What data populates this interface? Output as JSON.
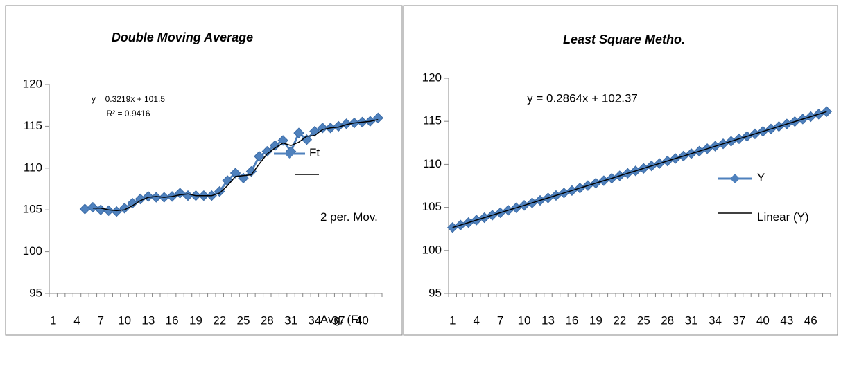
{
  "chart_data": [
    {
      "type": "line",
      "title": "Double Moving Average",
      "annotations": [
        "y = 0.3219x + 101.5",
        "R² = 0.9416"
      ],
      "categories": [
        1,
        null,
        null,
        4,
        null,
        null,
        7,
        null,
        null,
        10,
        null,
        null,
        13,
        null,
        null,
        16,
        null,
        null,
        19,
        null,
        null,
        22,
        null,
        null,
        25,
        null,
        null,
        28,
        null,
        null,
        31,
        null,
        null,
        34,
        null,
        null,
        37,
        null,
        null,
        40,
        null,
        null
      ],
      "ylim": [
        95,
        120
      ],
      "yticks": [
        95,
        100,
        105,
        110,
        115,
        120
      ],
      "series": [
        {
          "name": "Ft",
          "color": "#4f81bd",
          "marker": "diamond",
          "values": [
            null,
            null,
            null,
            null,
            105.1,
            105.3,
            105.0,
            104.9,
            104.8,
            105.2,
            105.8,
            106.3,
            106.6,
            106.5,
            106.5,
            106.6,
            107.0,
            106.7,
            106.7,
            106.7,
            106.7,
            107.2,
            108.5,
            109.4,
            108.8,
            109.6,
            111.4,
            112.0,
            112.7,
            113.3,
            112.0,
            114.2,
            113.4,
            114.4,
            114.8,
            114.8,
            115.0,
            115.3,
            115.4,
            115.5,
            115.6,
            116.0
          ]
        },
        {
          "name": "2 per. Mov. Avg. (Ft",
          "color": "#000000",
          "values": [
            null,
            null,
            null,
            null,
            null,
            105.2,
            105.2,
            105.0,
            104.9,
            105.0,
            105.5,
            106.1,
            106.5,
            106.6,
            106.5,
            106.6,
            106.8,
            106.9,
            106.7,
            106.7,
            106.7,
            107.0,
            107.9,
            109.0,
            109.1,
            109.2,
            110.5,
            111.7,
            112.4,
            113.0,
            112.7,
            113.1,
            113.8,
            113.9,
            114.6,
            114.8,
            114.9,
            115.2,
            115.4,
            115.5,
            115.6,
            115.8
          ]
        }
      ]
    },
    {
      "type": "line",
      "title": "Least Square Metho.",
      "annotations": [
        "y = 0.2864x + 102.37"
      ],
      "categories": [
        1,
        null,
        null,
        4,
        null,
        null,
        7,
        null,
        null,
        10,
        null,
        null,
        13,
        null,
        null,
        16,
        null,
        null,
        19,
        null,
        null,
        22,
        null,
        null,
        25,
        null,
        null,
        28,
        null,
        null,
        31,
        null,
        null,
        34,
        null,
        null,
        37,
        null,
        null,
        40,
        null,
        null,
        43,
        null,
        null,
        46,
        null,
        null
      ],
      "ylim": [
        95,
        120
      ],
      "yticks": [
        95,
        100,
        105,
        110,
        115,
        120
      ],
      "series": [
        {
          "name": "Y",
          "color": "#4f81bd",
          "marker": "diamond",
          "values": [
            102.66,
            102.94,
            103.23,
            103.52,
            103.8,
            104.09,
            104.37,
            104.66,
            104.95,
            105.23,
            105.52,
            105.81,
            106.09,
            106.38,
            106.67,
            106.95,
            107.24,
            107.53,
            107.81,
            108.1,
            108.38,
            108.67,
            108.96,
            109.24,
            109.53,
            109.82,
            110.1,
            110.39,
            110.68,
            110.96,
            111.25,
            111.53,
            111.82,
            112.11,
            112.39,
            112.68,
            112.97,
            113.25,
            113.54,
            113.83,
            114.11,
            114.4,
            114.69,
            114.97,
            115.26,
            115.54,
            115.83,
            116.12
          ]
        },
        {
          "name": "Linear (Y)",
          "color": "#000000",
          "values": [
            102.66,
            102.94,
            103.23,
            103.52,
            103.8,
            104.09,
            104.37,
            104.66,
            104.95,
            105.23,
            105.52,
            105.81,
            106.09,
            106.38,
            106.67,
            106.95,
            107.24,
            107.53,
            107.81,
            108.1,
            108.38,
            108.67,
            108.96,
            109.24,
            109.53,
            109.82,
            110.1,
            110.39,
            110.68,
            110.96,
            111.25,
            111.53,
            111.82,
            112.11,
            112.39,
            112.68,
            112.97,
            113.25,
            113.54,
            113.83,
            114.11,
            114.4,
            114.69,
            114.97,
            115.26,
            115.54,
            115.83,
            116.12
          ]
        }
      ]
    }
  ]
}
